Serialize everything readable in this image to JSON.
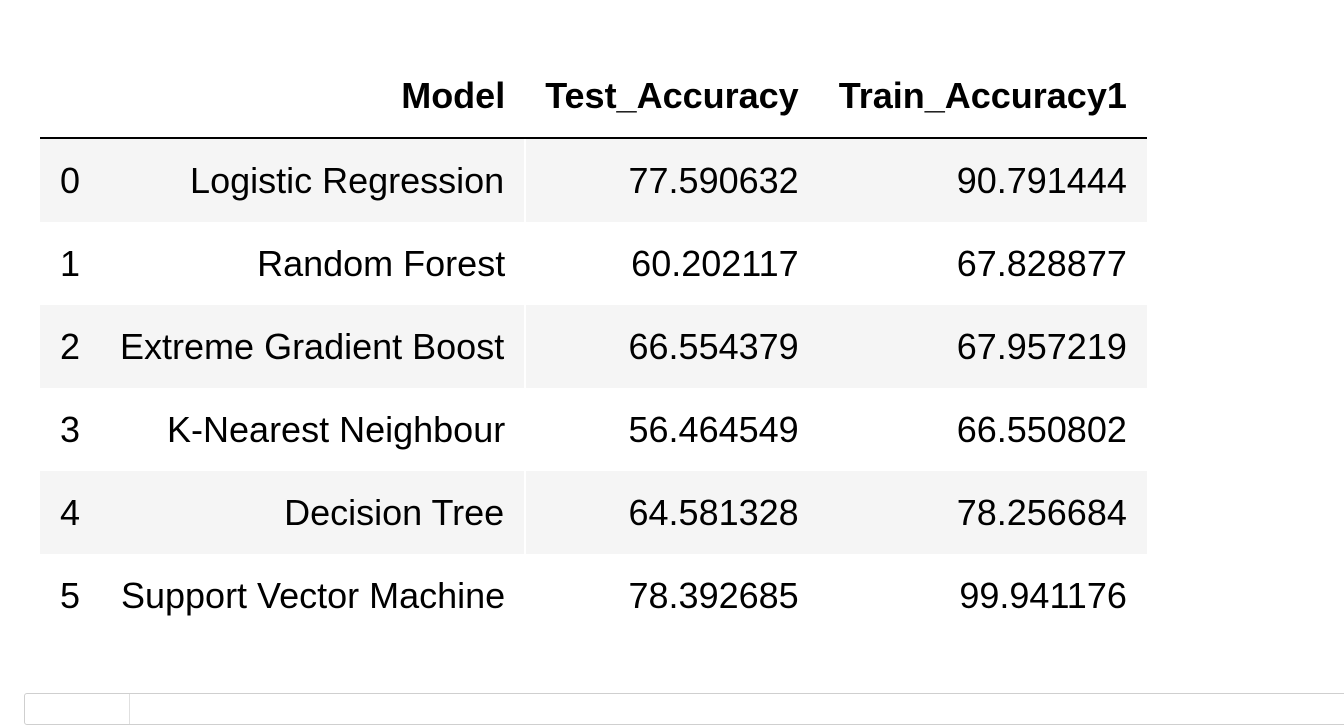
{
  "table": {
    "columns": [
      "",
      "Model",
      "Test_Accuracy",
      "Train_Accuracy1"
    ],
    "rows": [
      {
        "index": "0",
        "model": "Logistic Regression",
        "test": "77.590632",
        "train": "90.791444"
      },
      {
        "index": "1",
        "model": "Random Forest",
        "test": "60.202117",
        "train": "67.828877"
      },
      {
        "index": "2",
        "model": "Extreme Gradient Boost",
        "test": "66.554379",
        "train": "67.957219"
      },
      {
        "index": "3",
        "model": "K-Nearest Neighbour",
        "test": "56.464549",
        "train": "66.550802"
      },
      {
        "index": "4",
        "model": "Decision Tree",
        "test": "64.581328",
        "train": "78.256684"
      },
      {
        "index": "5",
        "model": "Support Vector Machine",
        "test": "78.392685",
        "train": "99.941176"
      }
    ]
  },
  "colors": {
    "stripe": "#f5f5f5",
    "header_rule": "#000000",
    "cell_border": "#cfcfcf"
  }
}
